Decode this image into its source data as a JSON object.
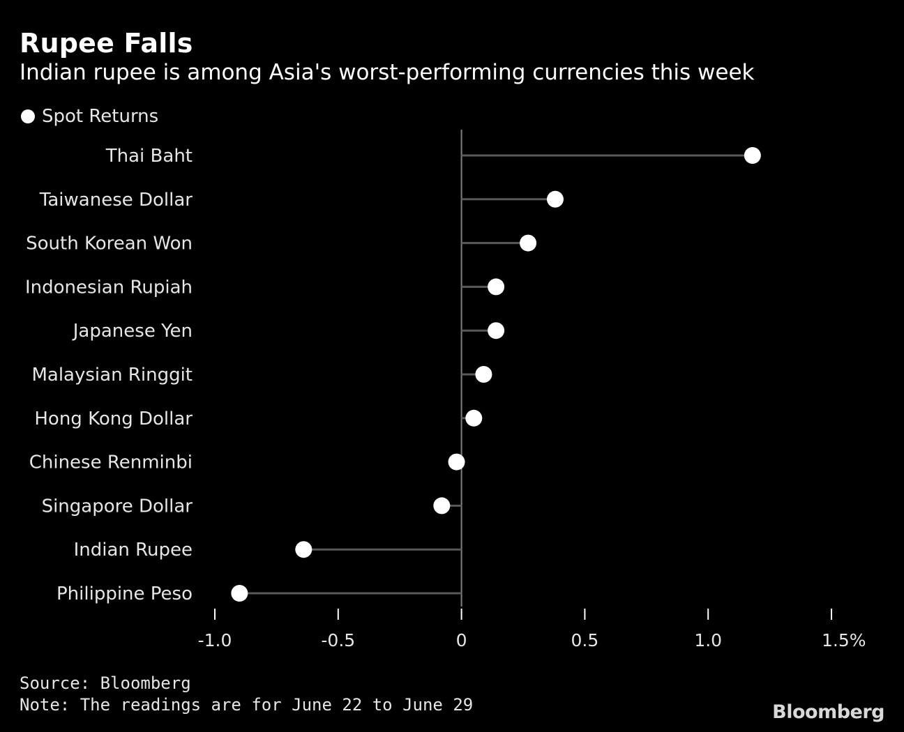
{
  "chart_data": {
    "type": "lollipop",
    "title": "Rupee Falls",
    "subtitle": "Indian rupee is among Asia's worst-performing currencies this week",
    "legend": [
      {
        "name": "Spot Returns",
        "color": "#ffffff"
      }
    ],
    "categories": [
      "Thai Baht",
      "Taiwanese Dollar",
      "South Korean Won",
      "Indonesian Rupiah",
      "Japanese Yen",
      "Malaysian Ringgit",
      "Hong Kong Dollar",
      "Chinese Renminbi",
      "Singapore Dollar",
      "Indian Rupee",
      "Philippine Peso"
    ],
    "series": [
      {
        "name": "Spot Returns",
        "values": [
          1.18,
          0.38,
          0.27,
          0.14,
          0.14,
          0.09,
          0.05,
          -0.02,
          -0.08,
          -0.64,
          -0.9
        ]
      }
    ],
    "xlim": [
      -1.0,
      1.5
    ],
    "ticks": [
      -1.0,
      -0.5,
      0,
      0.5,
      1.0,
      1.5
    ],
    "tick_labels": [
      "-1.0",
      "-0.5",
      "0",
      "0.5",
      "1.0",
      "1.5%"
    ],
    "colors": {
      "background": "#000000",
      "dot": "#ffffff",
      "stem": "#595959",
      "axis": "#808080"
    }
  },
  "footer": {
    "source": "Source: Bloomberg",
    "note": "Note: The readings are for June 22 to June 29",
    "brand": "Bloomberg"
  }
}
